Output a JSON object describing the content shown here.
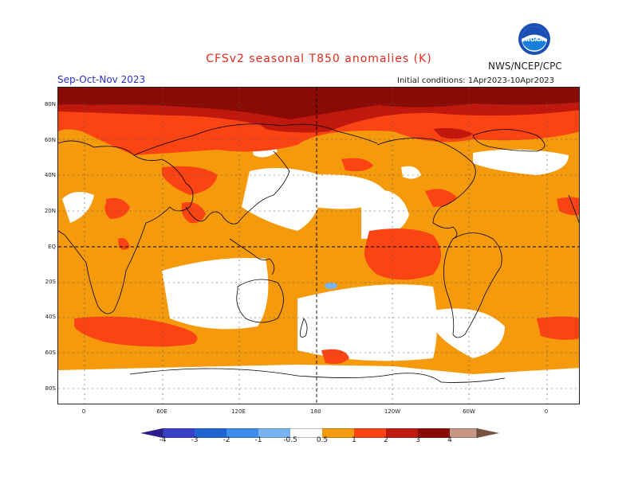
{
  "header": {
    "title": "CFSv2 seasonal T850 anomalies (K)",
    "org": "NWS/NCEP/CPC",
    "season": "Sep-Oct-Nov 2023",
    "initial_conditions": "Initial conditions: 1Apr2023-10Apr2023",
    "logo_text": "NOAA"
  },
  "map": {
    "projection": "cylindrical equidistant, 0-360E",
    "lat_labels": [
      "80N",
      "60N",
      "40N",
      "20N",
      "EQ",
      "20S",
      "40S",
      "60S",
      "80S"
    ],
    "lon_labels": [
      "0",
      "60E",
      "120E",
      "180",
      "120W",
      "60W",
      "0"
    ]
  },
  "colorbar": {
    "labels": [
      "-4",
      "-3",
      "-2",
      "-1",
      "-0.5",
      "0.5",
      "1",
      "2",
      "3",
      "4"
    ],
    "colors": [
      "#2e1c8c",
      "#3a3fc7",
      "#1e63d4",
      "#3c8eec",
      "#78b4f2",
      "#ffffff",
      "#f59a0c",
      "#fb4414",
      "#c0180c",
      "#8a0b05",
      "#c79786",
      "#7a5240"
    ]
  },
  "colors": {
    "c05": "#f59a0c",
    "c1": "#fb4414",
    "c2": "#c0180c",
    "c3": "#8a0b05",
    "cneg": "#78b4f2",
    "title": "#e0291f",
    "season": "#2f2fbf"
  }
}
